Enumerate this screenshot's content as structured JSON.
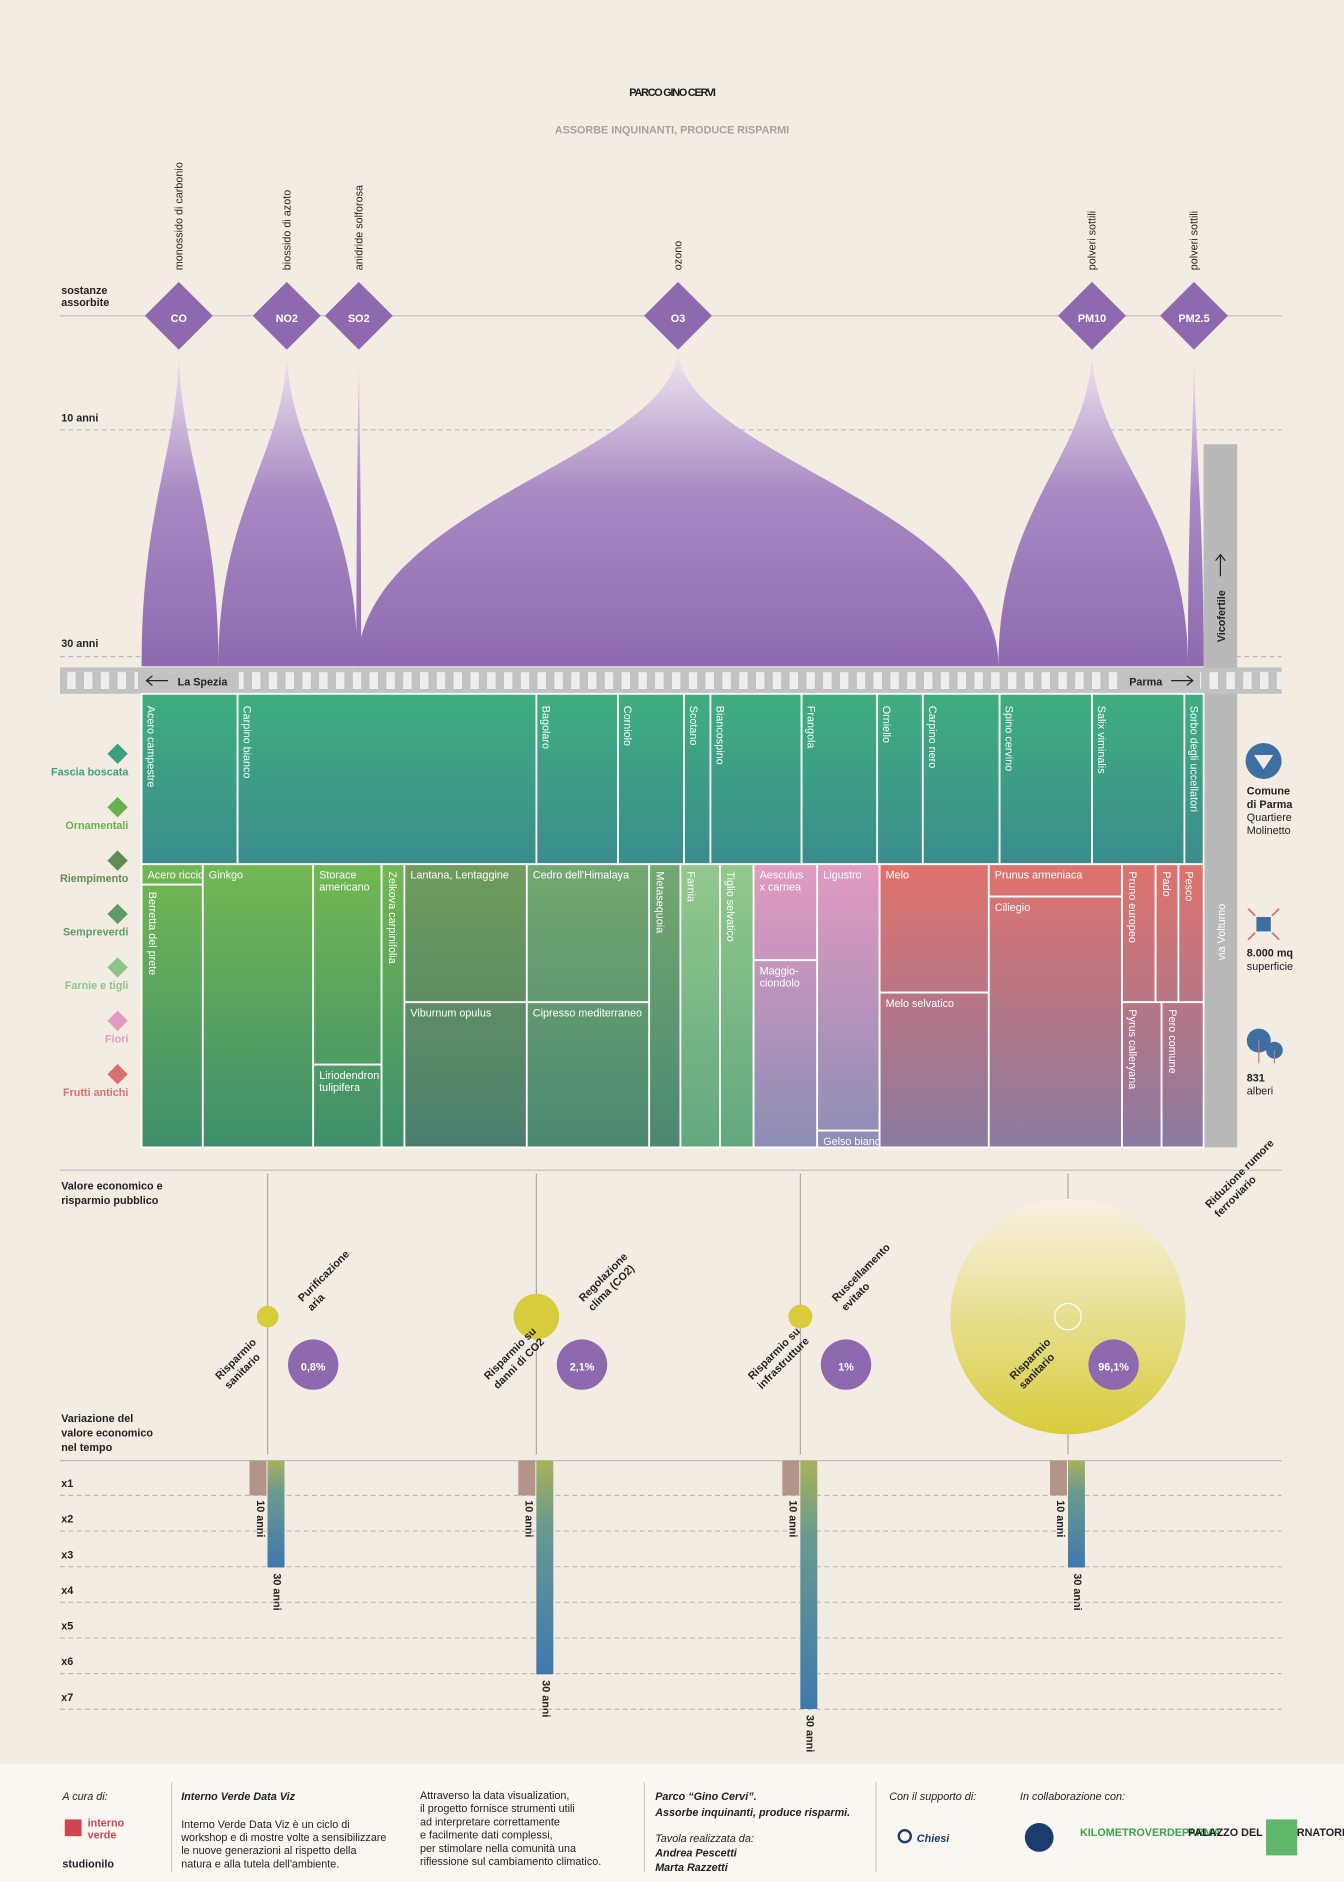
{
  "header": {
    "title": "PARCO GINO CERVI",
    "subtitle": "ASSORBE INQUINANTI, PRODUCE RISPARMI"
  },
  "pollutants": {
    "label": [
      "sostanze",
      "assorbite"
    ],
    "items": [
      {
        "symbol": "CO",
        "name": "monossido di carbonio"
      },
      {
        "symbol": "NO2",
        "name": "biossido di azoto"
      },
      {
        "symbol": "SO2",
        "name": "anidride solforosa"
      },
      {
        "symbol": "O3",
        "name": "ozono"
      },
      {
        "symbol": "PM10",
        "name": "polveri sottili"
      },
      {
        "symbol": "PM2.5",
        "name": "polveri sottili"
      }
    ]
  },
  "timeline": [
    "10 anni",
    "30 anni"
  ],
  "streets": {
    "left": "La Spezia",
    "right": "Parma",
    "north": "Vicofertile",
    "east": "via Volturno"
  },
  "categories": [
    "Fascia boscata",
    "Ornamentali",
    "Riempimento",
    "Sempreverdi",
    "Farnie e tigli",
    "Fiori",
    "Frutti antichi"
  ],
  "trees": {
    "woodland": [
      "Acero campestre",
      "Carpino bianco",
      "Bagolaro",
      "Corniolo",
      "Scotano",
      "Biancospino",
      "Frangola",
      "Orniello",
      "Carpino nero",
      "Spino cervino",
      "Salix viminalis",
      "Sorbo degli uccellatori"
    ],
    "cells": [
      [
        "Acero riccio"
      ],
      [
        "Berretta del prete"
      ],
      [
        "Ginkgo"
      ],
      [
        "Storace",
        "americano"
      ],
      [
        "Liriodendron",
        "tulipifera"
      ],
      [
        "Zelkova carpinifolia"
      ],
      [
        "Lantana, Lentaggine"
      ],
      [
        "Viburnum opulus"
      ],
      [
        "Cedro dell'Himalaya"
      ],
      [
        "Cipresso mediterraneo"
      ],
      [
        "Metasequoia"
      ],
      [
        "Farnia"
      ],
      [
        "Tiglio selvatico"
      ],
      [
        "Aesculus",
        "x carnea"
      ],
      [
        "Maggio-",
        "ciondolo"
      ],
      [
        "Ligustro"
      ],
      [
        "Gelso bianco"
      ],
      [
        "Melo"
      ],
      [
        "Melo selvatico"
      ],
      [
        "Prunus armeniaca"
      ],
      [
        "Ciliegio"
      ],
      [
        "Pruno europeo"
      ],
      [
        "Pado"
      ],
      [
        "Pesco"
      ],
      [
        "Pyrus calleryana"
      ],
      [
        "Pero comune"
      ]
    ]
  },
  "info": [
    {
      "bold": [
        "Comune",
        "di Parma"
      ],
      "lines": [
        "Quartiere",
        "Molinetto"
      ]
    },
    {
      "bold": [
        "8.000 mq"
      ],
      "lines": [
        "superficie"
      ]
    },
    {
      "bold": [
        "831"
      ],
      "lines": [
        "alberi"
      ]
    }
  ],
  "economy": {
    "title": [
      "Valore economico e",
      "risparmio pubblico"
    ],
    "items": [
      {
        "benefit": [
          "Purificazione",
          "aria"
        ],
        "saving": [
          "Risparmio",
          "sanitario"
        ],
        "share": "0,8%"
      },
      {
        "benefit": [
          "Regolazione",
          "clima (CO2)"
        ],
        "saving": [
          "Risparmio su",
          "danni di CO2"
        ],
        "share": "2,1%"
      },
      {
        "benefit": [
          "Ruscellamento",
          "evitato"
        ],
        "saving": [
          "Risparmio su",
          "infrastrutture"
        ],
        "share": "1%"
      },
      {
        "benefit": [
          "Riduzione rumore",
          "ferroviario"
        ],
        "saving": [
          "Risparmio",
          "sanitario"
        ],
        "share": "96,1%"
      }
    ]
  },
  "variation": {
    "title": [
      "Variazione del",
      "valore economico",
      "nel tempo"
    ],
    "multipliers": [
      "x1",
      "x2",
      "x3",
      "x4",
      "x5",
      "x6",
      "x7"
    ],
    "periods": [
      "10 anni",
      "30 anni"
    ]
  },
  "footer": {
    "curated": "A cura di:",
    "logos": [
      "interno",
      "verde",
      "studionilo"
    ],
    "about_title": "Interno Verde Data Viz",
    "about": [
      "Interno Verde Data Viz è un ciclo di",
      "workshop e di mostre volte a sensibilizzare",
      "le nuove generazioni al rispetto della",
      "natura e alla tutela dell'ambiente."
    ],
    "purpose": [
      "Attraverso la data visualization,",
      "il progetto fornisce strumenti utili",
      "ad interpretare correttamente",
      "e facilmente dati complessi,",
      "per stimolare nella comunità una",
      "riflessione sul cambiamento climatico."
    ],
    "work": [
      "Parco “Gino Cervi”.",
      "Assorbe inquinanti, produce risparmi."
    ],
    "credits_label": "Tavola realizzata da:",
    "authors": [
      "Andrea Pescetti",
      "Marta Razzetti"
    ],
    "support": "Con il supporto di:",
    "sponsor": "Chiesi",
    "collab": "In collaborazione con:",
    "partners": [
      "KILOMETROVERDEPARMA",
      "PALAZZO DEL GOVERNATORE"
    ]
  }
}
